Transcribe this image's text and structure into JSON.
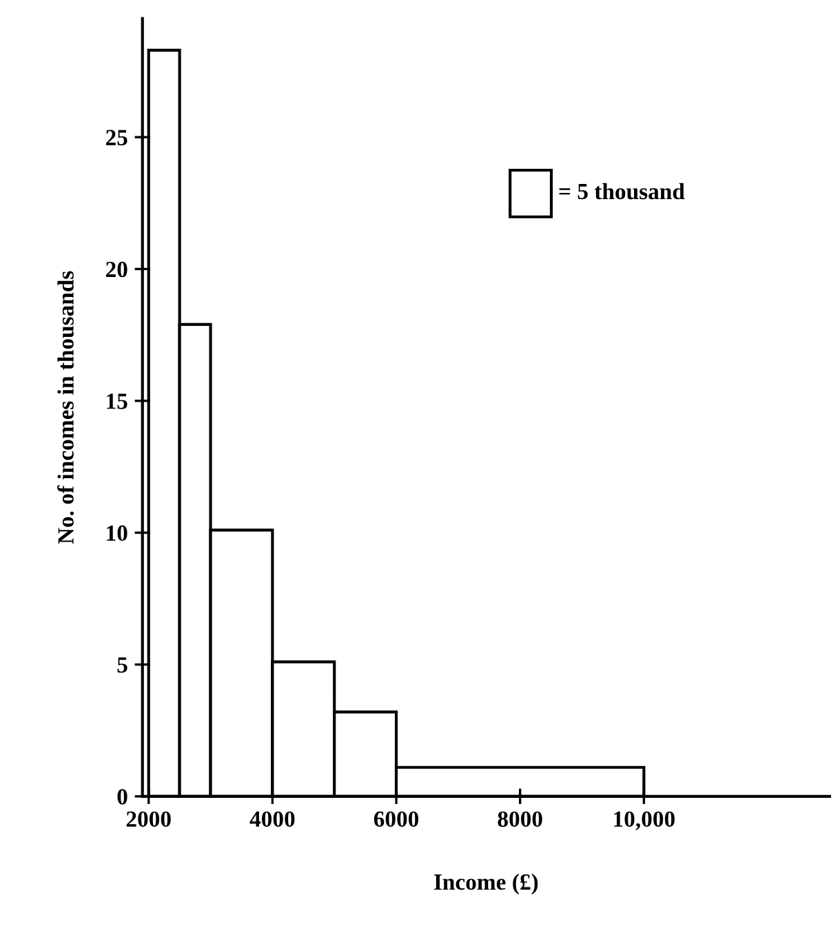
{
  "chart_data": {
    "type": "histogram",
    "xlabel": "Income (£)",
    "ylabel": "No. of incomes in thousands",
    "bins": [
      2000,
      2500,
      3000,
      4000,
      5000,
      6000,
      10000
    ],
    "values": [
      28.3,
      17.9,
      10.1,
      5.1,
      3.2,
      1.1
    ],
    "color": "#ffffff",
    "xlim": [
      1900,
      13000
    ],
    "ylim": [
      0,
      29.5
    ],
    "xticks": [
      2000,
      4000,
      6000,
      8000,
      {
        "value": 10000,
        "label": "10,000"
      }
    ],
    "yticks": [
      0,
      5,
      10,
      15,
      20,
      25
    ],
    "annotations": [
      "= 5 thousand"
    ],
    "grid": false
  }
}
